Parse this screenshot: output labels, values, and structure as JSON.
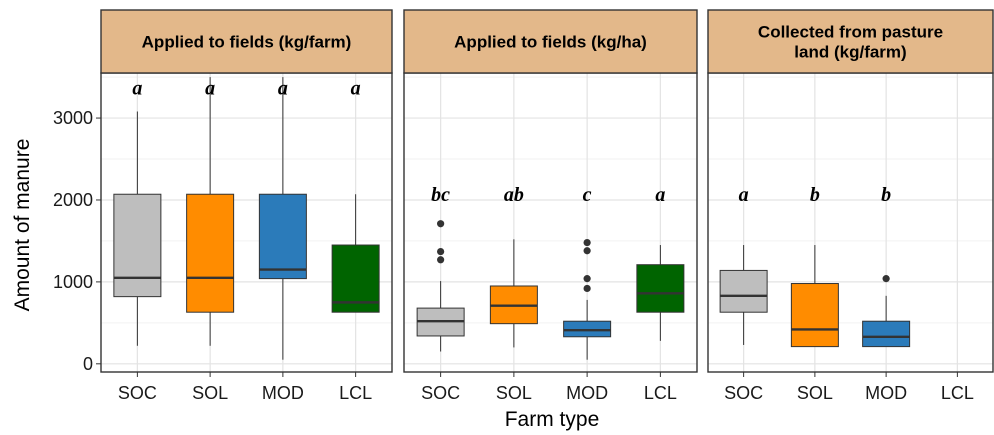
{
  "chart_data": {
    "type": "box",
    "xlabel": "Farm type",
    "ylabel": "Amount of manure",
    "categories": [
      "SOC",
      "SOL",
      "MOD",
      "LCL"
    ],
    "colors": {
      "SOC": "#bebebe",
      "SOL": "#ff8c00",
      "MOD": "#2b7bba",
      "LCL": "#006400"
    },
    "strip_color": "#e3b88a",
    "grid": true,
    "ylim": [
      -100,
      3550
    ],
    "yticks": [
      0,
      1000,
      2000,
      3000
    ],
    "ytick_labels": [
      "0",
      "1000",
      "2000",
      "3000"
    ],
    "panels": [
      {
        "title": "Applied to fields (kg/farm)",
        "boxes": [
          {
            "category": "SOC",
            "min": 220,
            "q1": 820,
            "median": 1050,
            "q3": 2070,
            "max": 3080,
            "outliers": []
          },
          {
            "category": "SOL",
            "min": 220,
            "q1": 630,
            "median": 1050,
            "q3": 2070,
            "max": 3500,
            "outliers": []
          },
          {
            "category": "MOD",
            "min": 50,
            "q1": 1040,
            "median": 1150,
            "q3": 2070,
            "max": 3500,
            "outliers": []
          },
          {
            "category": "LCL",
            "min": 630,
            "q1": 630,
            "median": 750,
            "q3": 1450,
            "max": 2070,
            "outliers": []
          }
        ],
        "letters": [
          {
            "category": "SOC",
            "text": "a",
            "y": 3290
          },
          {
            "category": "SOL",
            "text": "a",
            "y": 3290
          },
          {
            "category": "MOD",
            "text": "a",
            "y": 3290
          },
          {
            "category": "LCL",
            "text": "a",
            "y": 3290
          }
        ]
      },
      {
        "title": "Applied to fields (kg/ha)",
        "boxes": [
          {
            "category": "SOC",
            "min": 150,
            "q1": 340,
            "median": 520,
            "q3": 680,
            "max": 1010,
            "outliers": [
              1270,
              1370,
              1710
            ]
          },
          {
            "category": "SOL",
            "min": 200,
            "q1": 490,
            "median": 710,
            "q3": 950,
            "max": 1520,
            "outliers": []
          },
          {
            "category": "MOD",
            "min": 50,
            "q1": 330,
            "median": 410,
            "q3": 520,
            "max": 780,
            "outliers": [
              920,
              1040,
              1380,
              1480
            ]
          },
          {
            "category": "LCL",
            "min": 280,
            "q1": 630,
            "median": 860,
            "q3": 1210,
            "max": 1450,
            "outliers": []
          }
        ],
        "letters": [
          {
            "category": "SOC",
            "text": "bc",
            "y": 1990
          },
          {
            "category": "SOL",
            "text": "ab",
            "y": 1990
          },
          {
            "category": "MOD",
            "text": "c",
            "y": 1990
          },
          {
            "category": "LCL",
            "text": "a",
            "y": 1990
          }
        ]
      },
      {
        "title": "Collected from pasture land (kg/farm)",
        "title_lines": [
          "Collected from pasture",
          "land (kg/farm)"
        ],
        "boxes": [
          {
            "category": "SOC",
            "min": 230,
            "q1": 630,
            "median": 830,
            "q3": 1140,
            "max": 1450,
            "outliers": []
          },
          {
            "category": "SOL",
            "min": 210,
            "q1": 210,
            "median": 420,
            "q3": 980,
            "max": 1450,
            "outliers": []
          },
          {
            "category": "MOD",
            "min": 210,
            "q1": 210,
            "median": 330,
            "q3": 520,
            "max": 830,
            "outliers": [
              1040
            ]
          }
        ],
        "letters": [
          {
            "category": "SOC",
            "text": "a",
            "y": 1990
          },
          {
            "category": "SOL",
            "text": "b",
            "y": 1990
          },
          {
            "category": "MOD",
            "text": "b",
            "y": 1990
          }
        ]
      }
    ]
  }
}
